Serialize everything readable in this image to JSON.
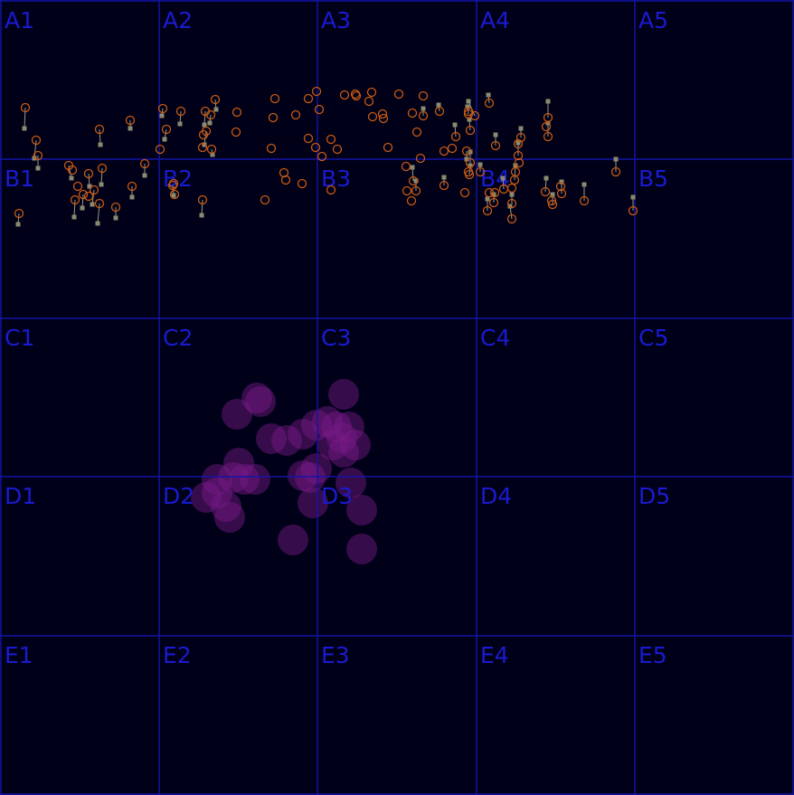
{
  "grid": {
    "rows": [
      "A",
      "B",
      "C",
      "D",
      "E"
    ],
    "cols": [
      "1",
      "2",
      "3",
      "4",
      "5"
    ],
    "labels": [
      "A1",
      "A2",
      "A3",
      "A4",
      "A5",
      "B1",
      "B2",
      "B3",
      "B4",
      "B5",
      "C1",
      "C2",
      "C3",
      "C4",
      "C5",
      "D1",
      "D2",
      "D3",
      "D4",
      "D5",
      "E1",
      "E2",
      "E3",
      "E4",
      "E5"
    ]
  },
  "colors": {
    "background": "#000018",
    "grid_line": "#1414a8",
    "label": "#1a1ad0",
    "ring": "#c85a14",
    "marker": "#8a8a70",
    "tether": "#9a9a80",
    "blob": "#7a1a8a"
  }
}
